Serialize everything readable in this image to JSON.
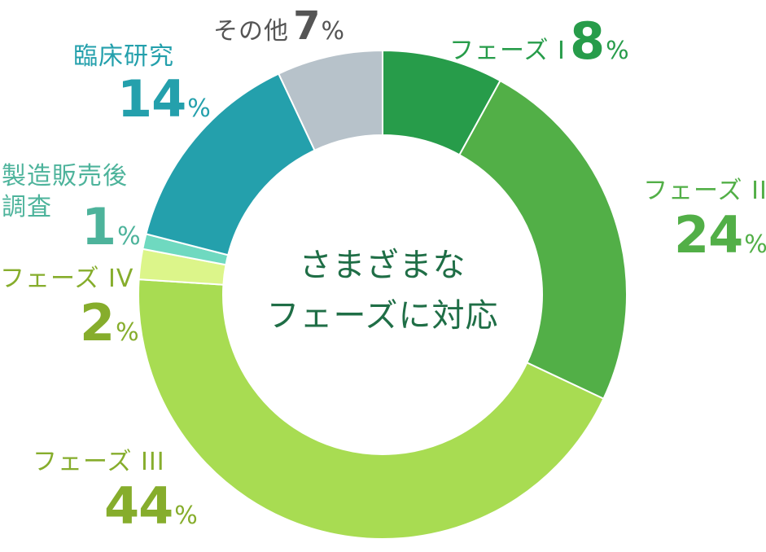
{
  "chart_data": {
    "type": "pie",
    "donut": true,
    "center_text": [
      "さまざまな",
      "フェーズに対応"
    ],
    "unit": "%",
    "slices": [
      {
        "name": "フェーズ I",
        "value": 8,
        "color": "#279c4a",
        "text_color": "#279c4a"
      },
      {
        "name": "フェーズ II",
        "value": 24,
        "color": "#52af47",
        "text_color": "#52af47"
      },
      {
        "name": "フェーズ III",
        "value": 44,
        "color": "#a8dc52",
        "text_color": "#86ad2c"
      },
      {
        "name": "フェーズ IV",
        "value": 2,
        "color": "#dcf58a",
        "text_color": "#86ad2c"
      },
      {
        "name": "製造販売後調査",
        "value": 1,
        "color": "#6fd9c0",
        "text_color": "#4db39b"
      },
      {
        "name": "臨床研究",
        "value": 14,
        "color": "#24a0ac",
        "text_color": "#24a0ac"
      },
      {
        "name": "その他",
        "value": 7,
        "color": "#b7c2ca",
        "text_color": "#555555"
      }
    ]
  }
}
